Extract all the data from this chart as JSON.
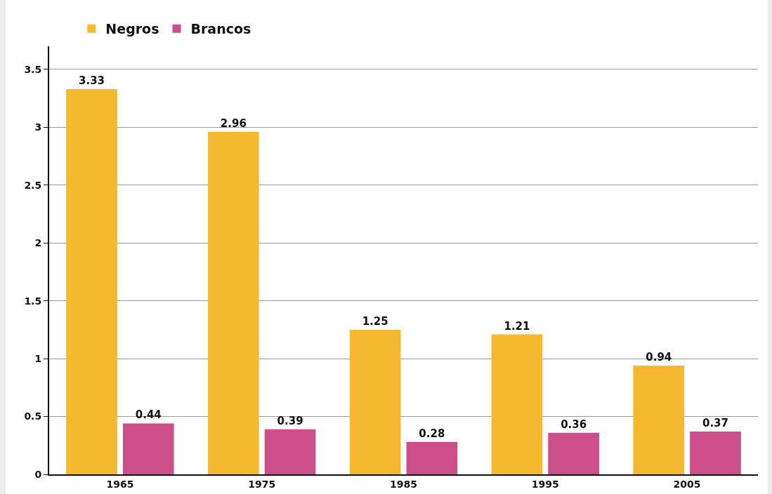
{
  "chart_data": {
    "type": "bar",
    "categories": [
      "1965",
      "1975",
      "1985",
      "1995",
      "2005"
    ],
    "series": [
      {
        "name": "Negros",
        "color": "#f4b92f",
        "values": [
          3.33,
          2.96,
          1.25,
          1.21,
          0.94
        ]
      },
      {
        "name": "Brancos",
        "color": "#cc4f8a",
        "values": [
          0.44,
          0.39,
          0.28,
          0.36,
          0.37
        ]
      }
    ],
    "ylim": [
      0,
      3.7
    ],
    "yticks": [
      0,
      0.5,
      1,
      1.5,
      2,
      2.5,
      3,
      3.5
    ],
    "grid": "y",
    "legend": "top left",
    "data_labels": true
  }
}
